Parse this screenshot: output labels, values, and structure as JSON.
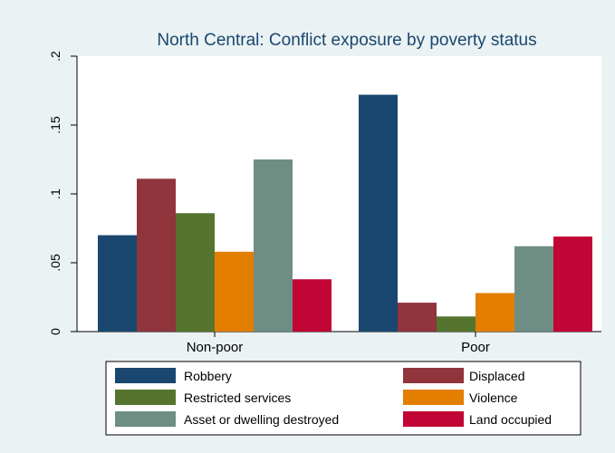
{
  "chart_data": {
    "type": "bar",
    "title": "North Central: Conflict exposure by poverty status",
    "xlabel": "",
    "ylabel": "",
    "categories": [
      "Non-poor",
      "Poor"
    ],
    "ylim": [
      0,
      0.2
    ],
    "yticks": [
      {
        "value": 0,
        "label": "0"
      },
      {
        "value": 0.05,
        "label": ".05"
      },
      {
        "value": 0.1,
        "label": ".1"
      },
      {
        "value": 0.15,
        "label": ".15"
      },
      {
        "value": 0.2,
        "label": ".2"
      }
    ],
    "grid": false,
    "legend_position": "bottom",
    "series": [
      {
        "name": "Robbery",
        "color": "#1a476f",
        "values": [
          0.07,
          0.172
        ]
      },
      {
        "name": "Displaced",
        "color": "#90353b",
        "values": [
          0.111,
          0.021
        ]
      },
      {
        "name": "Restricted services",
        "color": "#55752f",
        "values": [
          0.086,
          0.011
        ]
      },
      {
        "name": "Violence",
        "color": "#e37e00",
        "values": [
          0.058,
          0.028
        ]
      },
      {
        "name": "Asset or dwelling destroyed",
        "color": "#6e8e84",
        "values": [
          0.125,
          0.062
        ]
      },
      {
        "name": "Land occupied",
        "color": "#c10534",
        "values": [
          0.038,
          0.069
        ]
      }
    ]
  }
}
